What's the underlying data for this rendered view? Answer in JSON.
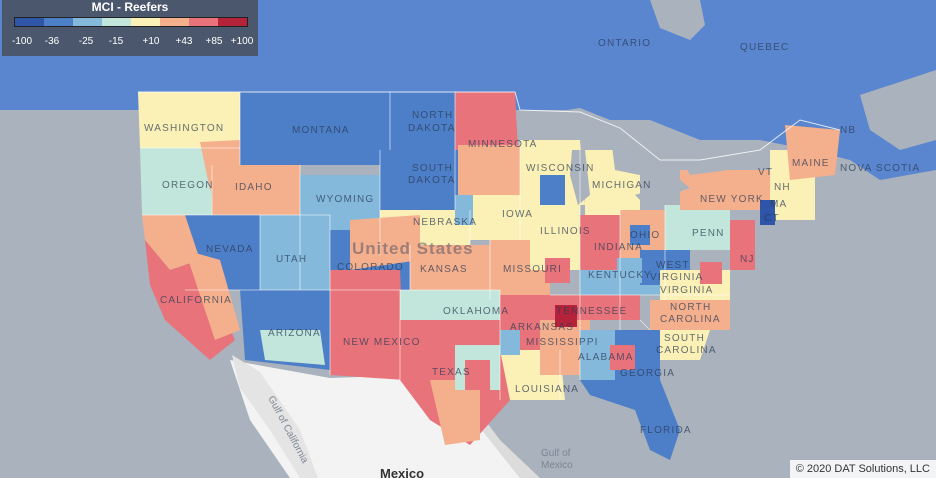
{
  "legend": {
    "title": "MCI - Reefers",
    "ticks": [
      "-100",
      "-36",
      "-25",
      "-15",
      "+10",
      "+43",
      "+85",
      "+100"
    ],
    "colors": [
      "#2f55a8",
      "#4d7fc8",
      "#84b9dc",
      "#c2e6dc",
      "#fbf0b5",
      "#f4b08d",
      "#e8737a",
      "#b5233a"
    ]
  },
  "labels": {
    "ontario": "ONTARIO",
    "quebec": "QUEBEC",
    "washington": "WASHINGTON",
    "montana": "MONTANA",
    "north_dakota_1": "NORTH",
    "north_dakota_2": "DAKOTA",
    "minnesota": "MINNESOTA",
    "oregon": "OREGON",
    "idaho": "IDAHO",
    "south_dakota_1": "SOUTH",
    "south_dakota_2": "DAKOTA",
    "wisconsin": "WISCONSIN",
    "michigan": "MICHIGAN",
    "maine": "MAINE",
    "nova_scotia": "NOVA SCOTIA",
    "nb": "NB",
    "wyoming": "WYOMING",
    "nebraska": "NEBRASKA",
    "iowa": "IOWA",
    "new_york": "NEW YORK",
    "vt": "VT",
    "nh": "NH",
    "ma": "MA",
    "ct": "CT",
    "nevada": "NEVADA",
    "utah": "UTAH",
    "colorado": "COLORADO",
    "united_states": "United States",
    "illinois": "ILLINOIS",
    "indiana": "INDIANA",
    "ohio": "OHIO",
    "penn": "PENN",
    "nj": "NJ",
    "kansas": "KANSAS",
    "missouri": "MISSOURI",
    "kentucky": "KENTUCKY",
    "west_1": "WEST",
    "west_2": "VIRGINIA",
    "virginia": "VIRGINIA",
    "california": "CALIFORNIA",
    "arizona": "ARIZONA",
    "new_mexico": "NEW MEXICO",
    "oklahoma": "OKLAHOMA",
    "arkansas": "ARKANSAS",
    "tennessee": "TENNESSEE",
    "north_1": "NORTH",
    "north_2": "CAROLINA",
    "south_1": "SOUTH",
    "south_2": "CAROLINA",
    "mississippi": "MISSISSIPPI",
    "alabama": "ALABAMA",
    "georgia": "GEORGIA",
    "texas": "TEXAS",
    "louisiana": "LOUISIANA",
    "florida": "FLORIDA",
    "gulf_of_california": "Gulf of California",
    "gulf_of_mexico_1": "Gulf of",
    "gulf_of_mexico_2": "Mexico",
    "mexico": "Mexico"
  },
  "copyright": "© 2020 DAT Solutions, LLC"
}
